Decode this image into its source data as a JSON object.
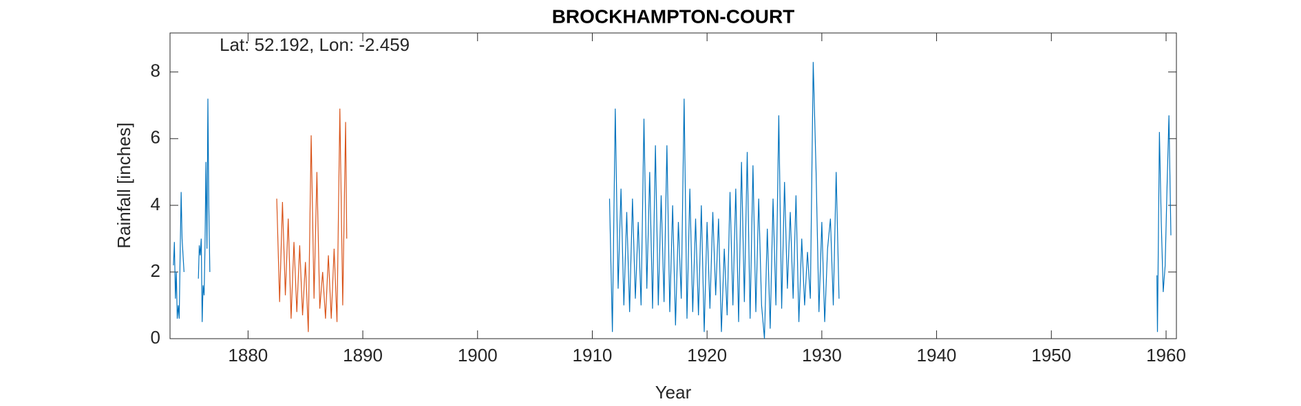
{
  "chart_data": {
    "type": "line",
    "title": "BROCKHAMPTON-COURT",
    "annotation": "Lat: 52.192, Lon: -2.459",
    "xlabel": "Year",
    "ylabel": "Rainfall [inches]",
    "xlim": [
      1873.2,
      1960.9
    ],
    "ylim": [
      0,
      9.17
    ],
    "xticks": [
      1880,
      1890,
      1900,
      1910,
      1920,
      1930,
      1940,
      1950,
      1960
    ],
    "yticks": [
      0,
      2,
      4,
      6,
      8
    ],
    "grid": false,
    "series": [
      {
        "color": "#0072bd",
        "x": [
          1873.5,
          1873.58,
          1873.67,
          1873.75,
          1873.83,
          1873.92,
          1874.0,
          1874.08,
          1874.17,
          1874.25,
          1874.42,
          1875.0,
          1875.67,
          1875.75,
          1875.83,
          1875.92,
          1876.0,
          1876.08,
          1876.17,
          1876.25,
          1876.33,
          1876.42,
          1876.5,
          1876.58,
          1876.67,
          1890,
          1911.5,
          1911.75,
          1912.0,
          1912.25,
          1912.5,
          1912.75,
          1913.0,
          1913.25,
          1913.5,
          1913.75,
          1914.0,
          1914.25,
          1914.5,
          1914.75,
          1915.0,
          1915.25,
          1915.5,
          1915.75,
          1916.0,
          1916.25,
          1916.5,
          1916.75,
          1917.0,
          1917.25,
          1917.5,
          1917.75,
          1918.0,
          1918.25,
          1918.5,
          1918.75,
          1919.0,
          1919.25,
          1919.5,
          1919.75,
          1920.0,
          1920.25,
          1920.5,
          1920.75,
          1921.0,
          1921.25,
          1921.5,
          1921.75,
          1922.0,
          1922.25,
          1922.5,
          1922.75,
          1923.0,
          1923.25,
          1923.5,
          1923.75,
          1924.0,
          1924.25,
          1924.5,
          1924.75,
          1925.0,
          1925.25,
          1925.5,
          1925.75,
          1926.0,
          1926.25,
          1926.5,
          1926.75,
          1927.0,
          1927.25,
          1927.5,
          1927.75,
          1928.0,
          1928.25,
          1928.5,
          1928.75,
          1929.0,
          1929.25,
          1929.5,
          1929.75,
          1930.0,
          1930.25,
          1930.5,
          1930.75,
          1931.0,
          1931.25,
          1931.5,
          1940,
          1959.2,
          1959.25,
          1959.42,
          1959.58,
          1959.75,
          1959.92,
          1960.08,
          1960.25,
          1960.42
        ],
        "values": [
          2.2,
          2.9,
          1.2,
          2.0,
          0.6,
          1.0,
          0.6,
          2.5,
          4.4,
          3.0,
          2.0,
          null,
          1.8,
          2.8,
          2.5,
          3.0,
          0.5,
          1.6,
          1.3,
          2.8,
          5.3,
          2.7,
          7.2,
          4.0,
          2.0,
          null,
          4.2,
          0.2,
          6.9,
          1.5,
          4.5,
          1.0,
          3.8,
          0.8,
          4.2,
          1.2,
          3.5,
          1.0,
          6.6,
          1.5,
          5.0,
          0.9,
          5.8,
          1.0,
          4.3,
          1.1,
          5.8,
          0.8,
          4.0,
          0.4,
          3.5,
          1.2,
          7.2,
          0.6,
          4.5,
          0.8,
          3.6,
          0.7,
          4.0,
          0.2,
          3.5,
          0.9,
          3.8,
          1.3,
          3.6,
          0.2,
          2.7,
          0.7,
          4.4,
          1.0,
          4.5,
          0.5,
          5.3,
          1.1,
          5.6,
          0.6,
          5.2,
          0.8,
          4.2,
          1.0,
          0.0,
          3.3,
          0.3,
          4.2,
          1.0,
          6.7,
          0.9,
          4.7,
          1.5,
          3.8,
          1.2,
          4.3,
          0.5,
          3.0,
          1.0,
          2.6,
          1.2,
          8.3,
          5.0,
          0.8,
          3.5,
          0.5,
          2.7,
          3.6,
          1.0,
          5.0,
          1.2,
          null,
          1.9,
          0.2,
          6.2,
          3.5,
          1.4,
          2.2,
          4.5,
          6.7,
          3.1
        ]
      },
      {
        "color": "#d95319",
        "x": [
          1882.5,
          1882.75,
          1883.0,
          1883.25,
          1883.5,
          1883.75,
          1884.0,
          1884.25,
          1884.5,
          1884.75,
          1885.0,
          1885.25,
          1885.5,
          1885.75,
          1886.0,
          1886.25,
          1886.5,
          1886.75,
          1887.0,
          1887.25,
          1887.5,
          1887.75,
          1888.0,
          1888.25,
          1888.5,
          1888.6
        ],
        "values": [
          4.2,
          1.1,
          4.1,
          1.3,
          3.6,
          0.6,
          2.9,
          0.8,
          2.8,
          0.7,
          2.3,
          0.2,
          6.1,
          1.2,
          5.0,
          0.9,
          2.0,
          0.6,
          2.5,
          0.6,
          2.7,
          0.5,
          6.9,
          1.0,
          6.5,
          3.0
        ]
      }
    ]
  }
}
